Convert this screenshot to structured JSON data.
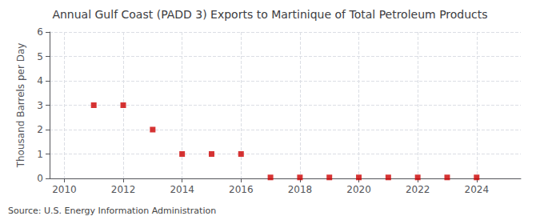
{
  "chart_data": {
    "type": "scatter",
    "title": "Annual Gulf Coast (PADD 3) Exports to Martinique of Total Petroleum Products",
    "ylabel": "Thousand Barrels per Day",
    "annotations": [
      "Source: U.S. Energy Information Administration"
    ],
    "x": [
      2011,
      2012,
      2013,
      2014,
      2015,
      2016,
      2017,
      2018,
      2019,
      2020,
      2021,
      2022,
      2023,
      2024
    ],
    "values": [
      3,
      3,
      2,
      1,
      1,
      1,
      0.04,
      0.04,
      0.04,
      0.04,
      0.04,
      0.04,
      0.04,
      0.04
    ],
    "color": "#cc0000",
    "marker": "square",
    "xlim": [
      2009.5,
      2025.5
    ],
    "xticks": [
      2010,
      2012,
      2014,
      2016,
      2018,
      2020,
      2022,
      2024
    ],
    "ylim": [
      0,
      6
    ],
    "yticks": [
      0,
      1,
      2,
      3,
      4,
      5,
      6
    ],
    "grid": true
  }
}
